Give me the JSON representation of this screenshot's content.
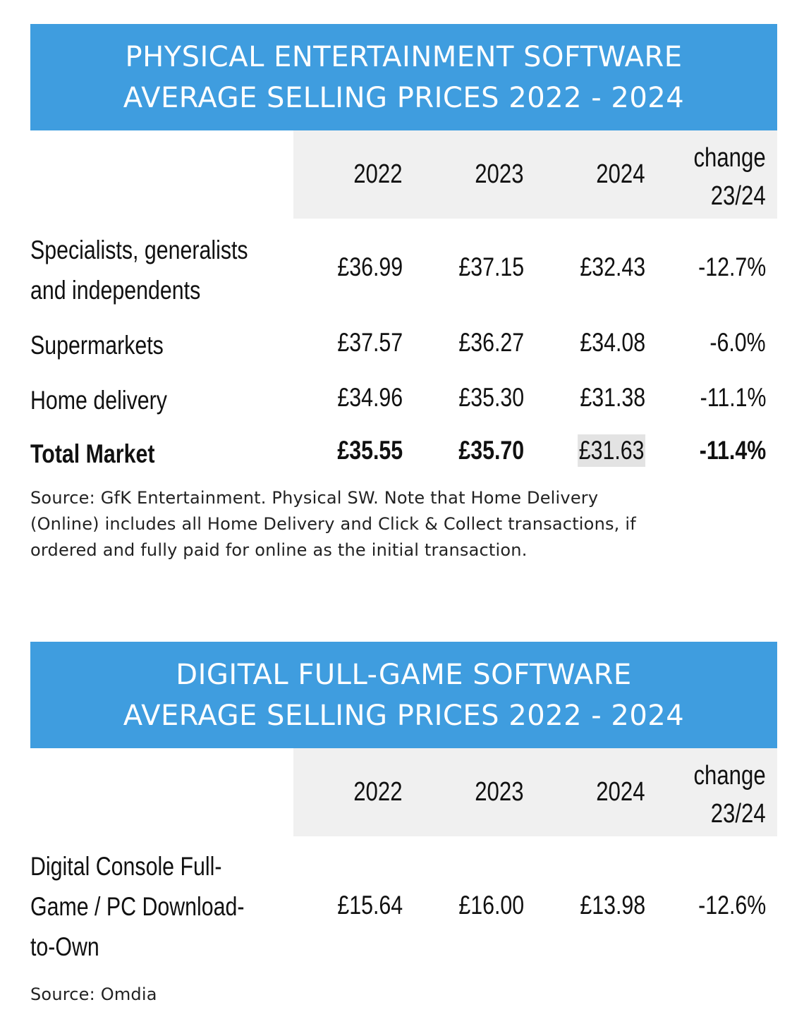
{
  "physical": {
    "title_line1": "PHYSICAL ENTERTAINMENT SOFTWARE",
    "title_line2": "AVERAGE SELLING PRICES 2022 - 2024",
    "headers": {
      "y2022": "2022",
      "y2023": "2023",
      "y2024": "2024",
      "change_line1": "change",
      "change_line2": "23/24"
    },
    "rows": [
      {
        "label_line1": "Specialists, generalists",
        "label_line2": "and independents",
        "y2022": "£36.99",
        "y2023": "£37.15",
        "y2024": "£32.43",
        "change": "-12.7%"
      },
      {
        "label_line1": "Supermarkets",
        "y2022": "£37.57",
        "y2023": "£36.27",
        "y2024": "£34.08",
        "change": "-6.0%"
      },
      {
        "label_line1": "Home delivery",
        "y2022": "£34.96",
        "y2023": "£35.30",
        "y2024": "£31.38",
        "change": "-11.1%"
      },
      {
        "label_line1": "Total Market",
        "y2022": "£35.55",
        "y2023": "£35.70",
        "y2024": "£31.63",
        "change": "-11.4%"
      }
    ],
    "source_line1": "Source: GfK Entertainment.  Physical SW.  Note that Home Delivery",
    "source_line2": "(Online) includes all Home Delivery and Click & Collect transactions, if",
    "source_line3": "ordered and fully paid for online as the initial transaction."
  },
  "digital": {
    "title_line1": "DIGITAL FULL-GAME SOFTWARE",
    "title_line2": "AVERAGE SELLING PRICES 2022 - 2024",
    "headers": {
      "y2022": "2022",
      "y2023": "2023",
      "y2024": "2024",
      "change_line1": "change",
      "change_line2": "23/24"
    },
    "rows": [
      {
        "label_line1": "Digital Console Full-",
        "label_line2": "Game / PC Download-",
        "label_line3": "to-Own",
        "y2022": "£15.64",
        "y2023": "£16.00",
        "y2024": "£13.98",
        "change": "-12.6%"
      }
    ],
    "source_line1": "Source: Omdia"
  },
  "colors": {
    "banner": "#3f9ddf",
    "header_band": "#f0f0f0",
    "highlight": "#e3e3e3"
  }
}
